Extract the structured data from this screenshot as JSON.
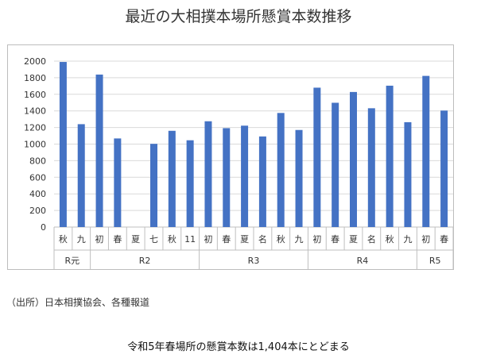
{
  "title": "最近の大相撲本場所懸賞本数推移",
  "source_note": "（出所）日本相撲協会、各種報道",
  "caption": "令和5年春場所の懸賞本数は1,404本にとどまる",
  "colors": {
    "bar": "#4472c4",
    "grid": "#d9d9d9",
    "axis": "#bfbfbf"
  },
  "chart_data": {
    "type": "bar",
    "title": "最近の大相撲本場所懸賞本数推移",
    "xlabel": "",
    "ylabel": "",
    "ylim": [
      0,
      2000
    ],
    "yticks": [
      0,
      200,
      400,
      600,
      800,
      1000,
      1200,
      1400,
      1600,
      1800,
      2000
    ],
    "grid": true,
    "categories": [
      "秋",
      "九",
      "初",
      "春",
      "夏",
      "七",
      "秋",
      "11",
      "初",
      "春",
      "夏",
      "名",
      "秋",
      "九",
      "初",
      "春",
      "夏",
      "名",
      "秋",
      "九",
      "初",
      "春"
    ],
    "values": [
      1990,
      1240,
      1838,
      1068,
      null,
      1003,
      1160,
      1046,
      1275,
      1192,
      1222,
      1092,
      1375,
      1170,
      1680,
      1498,
      1628,
      1432,
      1704,
      1264,
      1822,
      1404
    ],
    "groups": [
      {
        "label": "R元",
        "count": 2
      },
      {
        "label": "R2",
        "count": 6
      },
      {
        "label": "R3",
        "count": 6
      },
      {
        "label": "R4",
        "count": 6
      },
      {
        "label": "R5",
        "count": 2
      }
    ]
  }
}
